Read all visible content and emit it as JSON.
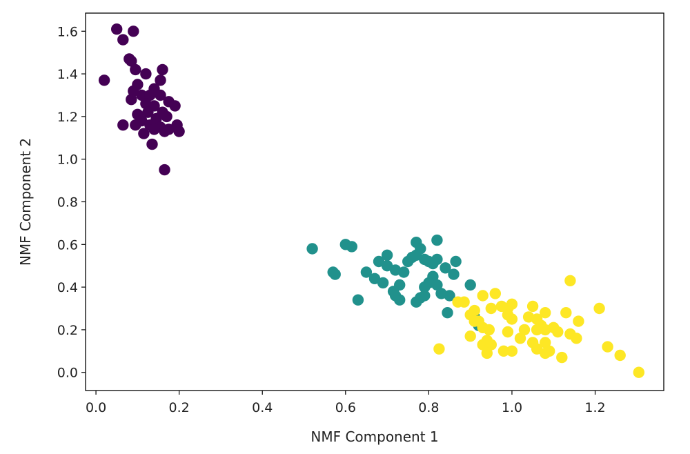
{
  "chart_data": {
    "type": "scatter",
    "title": "",
    "xlabel": "NMF Component 1",
    "ylabel": "NMF Component 2",
    "xlim": [
      -0.025,
      1.365
    ],
    "ylim": [
      -0.085,
      1.685
    ],
    "xticks": [
      0.0,
      0.2,
      0.4,
      0.6,
      0.8,
      1.0,
      1.2
    ],
    "yticks": [
      0.0,
      0.2,
      0.4,
      0.6,
      0.8,
      1.0,
      1.2,
      1.4,
      1.6
    ],
    "xtick_labels": [
      "0.0",
      "0.2",
      "0.4",
      "0.6",
      "0.8",
      "1.0",
      "1.2"
    ],
    "ytick_labels": [
      "0.0",
      "0.2",
      "0.4",
      "0.6",
      "0.8",
      "1.0",
      "1.2",
      "1.4",
      "1.6"
    ],
    "grid": false,
    "legend": "none",
    "series": [
      {
        "color": "#440154",
        "points": [
          [
            0.05,
            1.61
          ],
          [
            0.09,
            1.6
          ],
          [
            0.065,
            1.56
          ],
          [
            0.08,
            1.47
          ],
          [
            0.085,
            1.46
          ],
          [
            0.02,
            1.37
          ],
          [
            0.095,
            1.42
          ],
          [
            0.12,
            1.4
          ],
          [
            0.16,
            1.42
          ],
          [
            0.155,
            1.37
          ],
          [
            0.1,
            1.35
          ],
          [
            0.14,
            1.33
          ],
          [
            0.09,
            1.32
          ],
          [
            0.11,
            1.3
          ],
          [
            0.13,
            1.3
          ],
          [
            0.155,
            1.3
          ],
          [
            0.175,
            1.27
          ],
          [
            0.085,
            1.28
          ],
          [
            0.12,
            1.26
          ],
          [
            0.14,
            1.25
          ],
          [
            0.19,
            1.25
          ],
          [
            0.16,
            1.22
          ],
          [
            0.1,
            1.21
          ],
          [
            0.125,
            1.22
          ],
          [
            0.145,
            1.19
          ],
          [
            0.17,
            1.2
          ],
          [
            0.11,
            1.18
          ],
          [
            0.13,
            1.16
          ],
          [
            0.065,
            1.16
          ],
          [
            0.095,
            1.16
          ],
          [
            0.155,
            1.15
          ],
          [
            0.175,
            1.14
          ],
          [
            0.195,
            1.16
          ],
          [
            0.2,
            1.13
          ],
          [
            0.14,
            1.14
          ],
          [
            0.115,
            1.12
          ],
          [
            0.165,
            1.13
          ],
          [
            0.135,
            1.07
          ],
          [
            0.165,
            0.95
          ]
        ]
      },
      {
        "color": "#21918c",
        "points": [
          [
            0.52,
            0.58
          ],
          [
            0.6,
            0.6
          ],
          [
            0.615,
            0.59
          ],
          [
            0.57,
            0.47
          ],
          [
            0.575,
            0.46
          ],
          [
            0.63,
            0.34
          ],
          [
            0.65,
            0.47
          ],
          [
            0.68,
            0.52
          ],
          [
            0.7,
            0.55
          ],
          [
            0.7,
            0.5
          ],
          [
            0.72,
            0.48
          ],
          [
            0.67,
            0.44
          ],
          [
            0.69,
            0.42
          ],
          [
            0.73,
            0.41
          ],
          [
            0.715,
            0.38
          ],
          [
            0.74,
            0.47
          ],
          [
            0.75,
            0.52
          ],
          [
            0.76,
            0.54
          ],
          [
            0.77,
            0.61
          ],
          [
            0.78,
            0.58
          ],
          [
            0.77,
            0.55
          ],
          [
            0.79,
            0.53
          ],
          [
            0.8,
            0.52
          ],
          [
            0.82,
            0.62
          ],
          [
            0.82,
            0.53
          ],
          [
            0.81,
            0.51
          ],
          [
            0.84,
            0.49
          ],
          [
            0.865,
            0.52
          ],
          [
            0.86,
            0.46
          ],
          [
            0.81,
            0.45
          ],
          [
            0.8,
            0.42
          ],
          [
            0.82,
            0.41
          ],
          [
            0.79,
            0.4
          ],
          [
            0.78,
            0.35
          ],
          [
            0.77,
            0.33
          ],
          [
            0.79,
            0.36
          ],
          [
            0.83,
            0.37
          ],
          [
            0.85,
            0.36
          ],
          [
            0.845,
            0.28
          ],
          [
            0.73,
            0.34
          ],
          [
            0.72,
            0.36
          ],
          [
            0.9,
            0.41
          ],
          [
            0.91,
            0.26
          ],
          [
            0.92,
            0.22
          ]
        ]
      },
      {
        "color": "#fde725",
        "points": [
          [
            0.825,
            0.11
          ],
          [
            0.87,
            0.33
          ],
          [
            0.885,
            0.33
          ],
          [
            0.91,
            0.29
          ],
          [
            0.9,
            0.27
          ],
          [
            0.93,
            0.36
          ],
          [
            0.96,
            0.37
          ],
          [
            0.975,
            0.31
          ],
          [
            0.95,
            0.3
          ],
          [
            0.99,
            0.3
          ],
          [
            1.0,
            0.32
          ],
          [
            0.99,
            0.27
          ],
          [
            1.0,
            0.25
          ],
          [
            0.93,
            0.21
          ],
          [
            0.945,
            0.2
          ],
          [
            0.91,
            0.24
          ],
          [
            0.92,
            0.24
          ],
          [
            0.9,
            0.17
          ],
          [
            0.93,
            0.13
          ],
          [
            0.94,
            0.15
          ],
          [
            0.95,
            0.13
          ],
          [
            0.94,
            0.09
          ],
          [
            0.98,
            0.1
          ],
          [
            1.0,
            0.1
          ],
          [
            0.99,
            0.19
          ],
          [
            1.02,
            0.16
          ],
          [
            1.03,
            0.2
          ],
          [
            1.04,
            0.26
          ],
          [
            1.05,
            0.31
          ],
          [
            1.06,
            0.25
          ],
          [
            1.07,
            0.22
          ],
          [
            1.08,
            0.28
          ],
          [
            1.08,
            0.2
          ],
          [
            1.06,
            0.2
          ],
          [
            1.05,
            0.14
          ],
          [
            1.06,
            0.11
          ],
          [
            1.08,
            0.14
          ],
          [
            1.08,
            0.09
          ],
          [
            1.09,
            0.1
          ],
          [
            1.1,
            0.21
          ],
          [
            1.11,
            0.19
          ],
          [
            1.12,
            0.07
          ],
          [
            1.13,
            0.28
          ],
          [
            1.14,
            0.43
          ],
          [
            1.14,
            0.18
          ],
          [
            1.155,
            0.16
          ],
          [
            1.16,
            0.24
          ],
          [
            1.21,
            0.3
          ],
          [
            1.23,
            0.12
          ],
          [
            1.26,
            0.08
          ],
          [
            1.305,
            0.0
          ]
        ]
      }
    ]
  }
}
